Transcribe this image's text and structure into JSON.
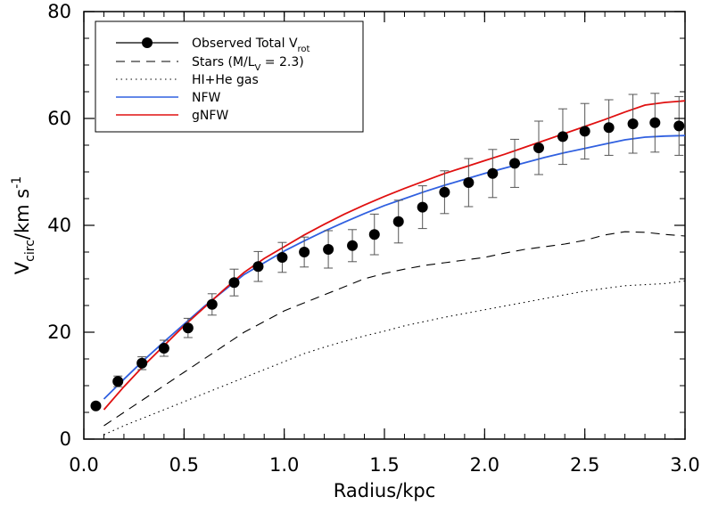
{
  "chart_data": {
    "type": "line",
    "xlabel": "Radius/kpc",
    "ylabel": "V_circ/km s^-1",
    "xlim": [
      0.0,
      3.0
    ],
    "ylim": [
      0,
      80
    ],
    "x_ticks": [
      "0.0",
      "0.5",
      "1.0",
      "1.5",
      "2.0",
      "2.5",
      "3.0"
    ],
    "y_ticks": [
      "0",
      "20",
      "40",
      "60",
      "80"
    ],
    "grid": false,
    "legend_position": "top-left",
    "series": [
      {
        "name": "Observed Total V_rot",
        "style": "points-with-errorbars",
        "color": "#000000",
        "x": [
          0.06,
          0.17,
          0.29,
          0.4,
          0.52,
          0.64,
          0.75,
          0.87,
          0.99,
          1.1,
          1.22,
          1.34,
          1.45,
          1.57,
          1.69,
          1.8,
          1.92,
          2.04,
          2.15,
          2.27,
          2.39,
          2.5,
          2.62,
          2.74,
          2.85,
          2.97
        ],
        "y": [
          6.2,
          10.8,
          14.2,
          17.0,
          20.8,
          25.2,
          29.3,
          32.3,
          34.0,
          35.0,
          35.5,
          36.2,
          38.3,
          40.7,
          43.4,
          46.2,
          48.0,
          49.7,
          51.6,
          54.5,
          56.6,
          57.6,
          58.3,
          59.0,
          59.2,
          58.6
        ],
        "yerr": [
          0.0,
          1.0,
          1.2,
          1.5,
          1.8,
          2.0,
          2.5,
          2.8,
          2.8,
          2.8,
          3.5,
          3.0,
          3.8,
          4.0,
          4.0,
          4.0,
          4.5,
          4.5,
          4.5,
          5.0,
          5.2,
          5.2,
          5.2,
          5.5,
          5.5,
          5.5
        ]
      },
      {
        "name": "Stars (M/L_V = 2.3)",
        "style": "dashed",
        "color": "#000000",
        "x": [
          0.1,
          0.2,
          0.3,
          0.4,
          0.5,
          0.6,
          0.7,
          0.8,
          0.9,
          1.0,
          1.1,
          1.2,
          1.3,
          1.4,
          1.5,
          1.6,
          1.7,
          1.8,
          1.9,
          2.0,
          2.1,
          2.2,
          2.3,
          2.4,
          2.5,
          2.6,
          2.7,
          2.8,
          2.9,
          3.0
        ],
        "y": [
          2.5,
          5.0,
          7.5,
          10.0,
          12.5,
          15.0,
          17.5,
          20.0,
          22.0,
          24.0,
          25.5,
          27.0,
          28.5,
          30.0,
          31.0,
          31.8,
          32.5,
          33.0,
          33.5,
          34.0,
          34.8,
          35.5,
          36.0,
          36.5,
          37.2,
          38.2,
          38.8,
          38.7,
          38.3,
          38.0
        ]
      },
      {
        "name": "HI+He gas",
        "style": "dotted",
        "color": "#000000",
        "x": [
          0.1,
          0.2,
          0.3,
          0.4,
          0.5,
          0.6,
          0.7,
          0.8,
          0.9,
          1.0,
          1.1,
          1.2,
          1.3,
          1.4,
          1.5,
          1.6,
          1.7,
          1.8,
          1.9,
          2.0,
          2.1,
          2.2,
          2.3,
          2.4,
          2.5,
          2.6,
          2.7,
          2.8,
          2.9,
          3.0
        ],
        "y": [
          0.8,
          2.5,
          4.0,
          5.5,
          7.0,
          8.5,
          10.0,
          11.5,
          13.0,
          14.5,
          16.0,
          17.2,
          18.3,
          19.3,
          20.2,
          21.2,
          22.0,
          22.8,
          23.5,
          24.2,
          24.9,
          25.6,
          26.3,
          27.0,
          27.7,
          28.2,
          28.7,
          28.9,
          29.1,
          29.6
        ]
      },
      {
        "name": "NFW",
        "style": "solid",
        "color": "#3060e0",
        "x": [
          0.1,
          0.2,
          0.3,
          0.4,
          0.5,
          0.6,
          0.7,
          0.8,
          0.9,
          1.0,
          1.1,
          1.2,
          1.3,
          1.4,
          1.5,
          1.6,
          1.7,
          1.8,
          1.9,
          2.0,
          2.1,
          2.2,
          2.3,
          2.4,
          2.5,
          2.6,
          2.7,
          2.8,
          2.9,
          3.0
        ],
        "y": [
          7.5,
          11.2,
          14.8,
          18.2,
          21.5,
          24.8,
          27.8,
          30.8,
          33.0,
          35.2,
          37.1,
          38.9,
          40.6,
          42.2,
          43.7,
          45.0,
          46.3,
          47.5,
          48.6,
          49.7,
          50.7,
          51.7,
          52.7,
          53.6,
          54.4,
          55.2,
          56.0,
          56.5,
          56.7,
          56.8
        ]
      },
      {
        "name": "gNFW",
        "style": "solid",
        "color": "#e01010",
        "x": [
          0.1,
          0.2,
          0.3,
          0.4,
          0.5,
          0.6,
          0.7,
          0.8,
          0.9,
          1.0,
          1.1,
          1.2,
          1.3,
          1.4,
          1.5,
          1.6,
          1.7,
          1.8,
          1.9,
          2.0,
          2.1,
          2.2,
          2.3,
          2.4,
          2.5,
          2.6,
          2.7,
          2.8,
          2.9,
          3.0
        ],
        "y": [
          5.5,
          9.8,
          13.8,
          17.5,
          21.2,
          24.6,
          28.0,
          31.2,
          33.8,
          36.0,
          38.2,
          40.2,
          42.1,
          43.8,
          45.4,
          46.9,
          48.3,
          49.7,
          50.9,
          52.1,
          53.3,
          54.6,
          55.9,
          57.2,
          58.5,
          59.8,
          61.2,
          62.5,
          63.0,
          63.3
        ]
      }
    ]
  }
}
